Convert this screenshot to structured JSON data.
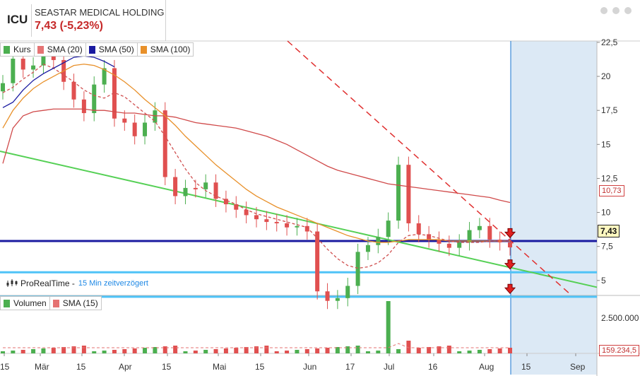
{
  "header": {
    "ticker": "ICU",
    "company_name": "SEASTAR MEDICAL HOLDING",
    "price_change": "7,43 (-5,23%)"
  },
  "legend_price": [
    {
      "label": "Kurs",
      "color": "#4caf50"
    },
    {
      "label": "SMA (20)",
      "color": "#e57373"
    },
    {
      "label": "SMA (50)",
      "color": "#1a1aa0"
    },
    {
      "label": "SMA (100)",
      "color": "#e8902a"
    }
  ],
  "legend_volume": [
    {
      "label": "Volumen",
      "color": "#4caf50"
    },
    {
      "label": "SMA (15)",
      "color": "#e57373"
    }
  ],
  "source": {
    "name": "ProRealTime -",
    "delay": "15 Min zeitverzögert"
  },
  "badges": {
    "sma100": "10,73",
    "last": "7,43",
    "vol_sma": "159.234,5"
  },
  "colors": {
    "up": "#4caf50",
    "down": "#e05050",
    "support": "#1a1aa0",
    "levels": "#4fc3f7",
    "trend": "#55d055",
    "resist": "#e03030",
    "forecast_bg": "#dce9f5"
  },
  "chart_data": {
    "type": "candlestick",
    "y_ticks": [
      "5",
      "7,5",
      "10",
      "12,5",
      "15",
      "17,5",
      "20",
      "22,5"
    ],
    "y_values": [
      5,
      7.5,
      10,
      12.5,
      15,
      17.5,
      20,
      22.5
    ],
    "ylim": [
      3.9,
      22.6
    ],
    "x_ticks": [
      "15",
      "Mär",
      "15",
      "Apr",
      "15",
      "Mai",
      "15",
      "Jun",
      "17",
      "Jul",
      "16",
      "Aug",
      "15",
      "Sep"
    ],
    "horizontal_levels": [
      7.9,
      5.6,
      3.8
    ],
    "close_series": [
      19.5,
      21.3,
      20.5,
      20.8,
      21.8,
      21.2,
      19.6,
      18.3,
      17.3,
      19.4,
      20.6,
      16.9,
      16.6,
      15.6,
      16.6,
      17.5,
      12.6,
      11.2,
      11.8,
      11.7,
      12.2,
      11.0,
      10.6,
      10.2,
      9.8,
      9.5,
      9.3,
      9.2,
      8.9,
      9.0,
      8.6,
      4.2,
      3.5,
      3.7,
      4.6,
      7.1,
      7.6,
      8.2,
      9.4,
      13.5,
      9.2,
      8.4,
      8.0,
      7.7,
      7.4,
      7.8,
      8.7,
      9.0,
      8.0,
      7.8,
      7.43
    ],
    "sma20": [
      18.8,
      19.2,
      19.8,
      20.3,
      20.9,
      20.6,
      20.1,
      19.6,
      19.0,
      18.6,
      18.4,
      18.8,
      18.5,
      17.9,
      17.3,
      16.7,
      15.6,
      14.4,
      13.2,
      12.2,
      11.6,
      11.2,
      10.9,
      10.6,
      10.2,
      9.9,
      9.7,
      9.5,
      9.3,
      9.1,
      8.9,
      8.1,
      7.3,
      6.6,
      6.1,
      5.9,
      6.0,
      6.3,
      6.9,
      7.8,
      8.3,
      8.4,
      8.3,
      8.1,
      7.9,
      7.8,
      7.8,
      7.8,
      7.9,
      7.9,
      7.9
    ],
    "sma50": [
      16.2,
      17.5,
      18.4,
      19.1,
      19.6,
      20.0,
      20.4,
      20.8,
      20.9,
      20.8,
      20.5,
      20.1,
      19.6,
      19.0,
      18.3,
      17.7,
      17.1,
      16.4,
      15.6,
      14.9,
      14.2,
      13.5,
      12.9,
      12.3,
      11.7,
      11.2,
      10.8,
      10.4,
      10.1,
      9.8,
      9.5,
      9.2,
      8.9,
      8.6,
      8.3,
      8.1,
      7.9,
      7.8,
      7.8,
      7.9,
      8.0,
      8.0,
      8.0,
      8.0,
      7.9,
      7.9,
      7.9,
      7.9,
      7.9,
      7.9,
      7.9
    ],
    "sma100": [
      13.6,
      16.2,
      17.1,
      17.4,
      17.5,
      17.6,
      17.6,
      17.6,
      17.6,
      17.5,
      17.5,
      17.4,
      17.3,
      17.3,
      17.2,
      17.1,
      17.1,
      17.0,
      16.8,
      16.6,
      16.5,
      16.4,
      16.3,
      16.2,
      16.0,
      15.8,
      15.6,
      15.3,
      15.0,
      14.6,
      14.2,
      13.8,
      13.4,
      13.1,
      12.9,
      12.7,
      12.5,
      12.3,
      12.1,
      12.0,
      11.9,
      11.8,
      11.7,
      11.6,
      11.5,
      11.4,
      11.3,
      11.2,
      11.1,
      10.9,
      10.73
    ],
    "volume_ticks": [
      "2.500.000",
      "159.234,5"
    ],
    "volume_peak": 2500000
  }
}
